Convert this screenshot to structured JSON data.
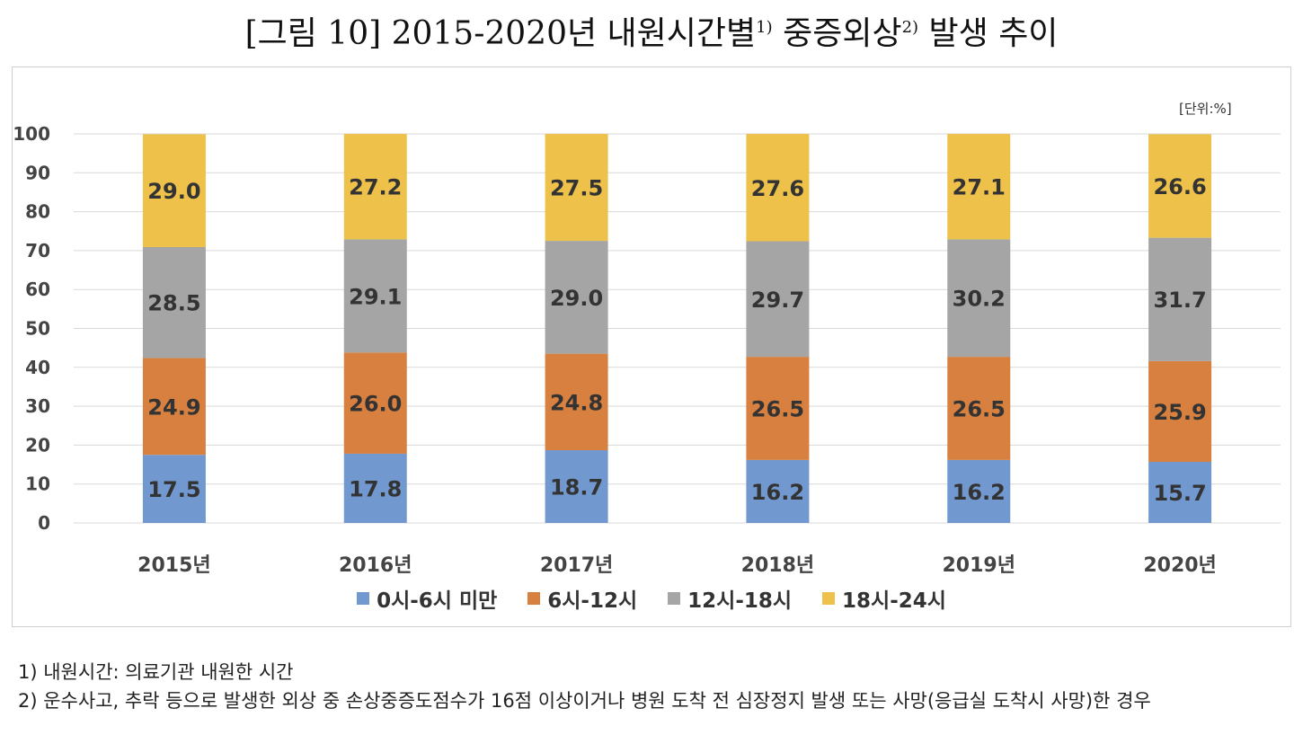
{
  "title": {
    "main": "[그림 10] 2015-2020년 내원시간별",
    "sup1": "1)",
    "mid": " 중증외상",
    "sup2": "2)",
    "end": " 발생 추이"
  },
  "unit_label": "[단위:%]",
  "colors": {
    "s0": "#7199d0",
    "s1": "#d7803f",
    "s2": "#a5a5a5",
    "s3": "#edc14a",
    "grid": "#d9d9d9"
  },
  "chart_data": {
    "type": "bar",
    "stacked": true,
    "categories": [
      "2015년",
      "2016년",
      "2017년",
      "2018년",
      "2019년",
      "2020년"
    ],
    "series": [
      {
        "name": "0시-6시 미만",
        "values": [
          17.5,
          17.8,
          18.7,
          16.2,
          16.2,
          15.7
        ]
      },
      {
        "name": "6시-12시",
        "values": [
          24.9,
          26.0,
          24.8,
          26.5,
          26.5,
          25.9
        ]
      },
      {
        "name": "12시-18시",
        "values": [
          28.5,
          29.1,
          29.0,
          29.7,
          30.2,
          31.7
        ]
      },
      {
        "name": "18시-24시",
        "values": [
          29.0,
          27.2,
          27.5,
          27.6,
          27.1,
          26.6
        ]
      }
    ],
    "data_labels": [
      [
        "17.5",
        "17.8",
        "18.7",
        "16.2",
        "16.2",
        "15.7"
      ],
      [
        "24.9",
        "26.0",
        "24.8",
        "26.5",
        "26.5",
        "25.9"
      ],
      [
        "28.5",
        "29.1",
        "29.0",
        "29.7",
        "30.2",
        "31.7"
      ],
      [
        "29.0",
        "27.2",
        "27.5",
        "27.6",
        "27.1",
        "26.6"
      ]
    ],
    "yticks": [
      "0",
      "10",
      "20",
      "30",
      "40",
      "50",
      "60",
      "70",
      "80",
      "90",
      "100"
    ],
    "ylim": [
      0,
      100
    ],
    "grid": true,
    "legend_position": "bottom"
  },
  "footnotes": [
    "1)  내원시간:  의료기관  내원한  시간",
    "2)  운수사고,  추락  등으로  발생한  외상  중  손상중증도점수가  16점  이상이거나  병원  도착  전  심장정지  발생  또는  사망(응급실  도착시  사망)한  경우"
  ]
}
